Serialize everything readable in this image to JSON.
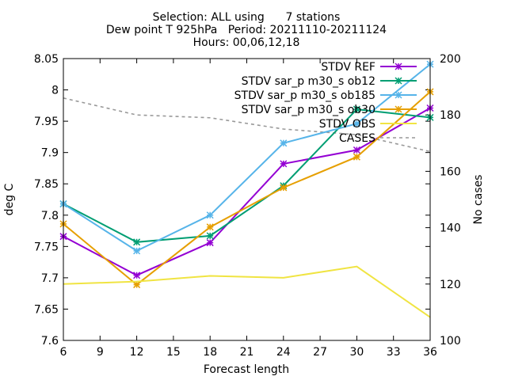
{
  "chart_data": {
    "type": "line",
    "title_lines": [
      "Selection: ALL using      7 stations",
      "Dew point T 925hPa   Period: 20211110-20211124",
      "Hours: 00,06,12,18"
    ],
    "xlabel": "Forecast length",
    "ylabel": "deg C",
    "y2label": "No cases",
    "x_ticks": [
      6,
      9,
      12,
      15,
      18,
      21,
      24,
      27,
      30,
      33,
      36
    ],
    "y_ticks": [
      7.6,
      7.65,
      7.7,
      7.75,
      7.8,
      7.85,
      7.9,
      7.95,
      8.0,
      8.05
    ],
    "y_tick_labels": [
      "7.6",
      "7.65",
      "7.7",
      "7.75",
      "7.8",
      "7.85",
      "7.9",
      "7.95",
      "8",
      "8.05"
    ],
    "y2_ticks": [
      100,
      120,
      140,
      160,
      180,
      200
    ],
    "xlim": [
      6,
      36
    ],
    "ylim": [
      7.6,
      8.05
    ],
    "y2lim": [
      100,
      200
    ],
    "grid": false,
    "legend_position": "top-right",
    "series": [
      {
        "name": "STDV REF",
        "color": "#9400d3",
        "marker": "x",
        "axis": "y",
        "x": [
          6,
          12,
          18,
          24,
          30,
          36
        ],
        "y": [
          7.766,
          7.704,
          7.756,
          7.882,
          7.904,
          7.971
        ]
      },
      {
        "name": "STDV sar_p m30_s ob12",
        "color": "#009e73",
        "marker": "x",
        "axis": "y",
        "x": [
          6,
          12,
          18,
          24,
          30,
          36
        ],
        "y": [
          7.818,
          7.757,
          7.767,
          7.847,
          7.969,
          7.956
        ]
      },
      {
        "name": "STDV sar_p m30_s ob185",
        "color": "#56b4e9",
        "marker": "x",
        "axis": "y",
        "x": [
          6,
          12,
          18,
          24,
          30,
          36
        ],
        "y": [
          7.818,
          7.743,
          7.8,
          7.915,
          7.946,
          8.041
        ]
      },
      {
        "name": "STDV sar_p m30_s ob30",
        "color": "#e69f00",
        "marker": "x",
        "axis": "y",
        "x": [
          6,
          12,
          18,
          24,
          30,
          36
        ],
        "y": [
          7.786,
          7.689,
          7.781,
          7.844,
          7.893,
          7.997
        ]
      },
      {
        "name": "STDV OBS",
        "color": "#f0e442",
        "marker": "none",
        "axis": "y",
        "x": [
          6,
          12,
          18,
          24,
          30,
          36
        ],
        "y": [
          7.69,
          7.694,
          7.703,
          7.7,
          7.718,
          7.637
        ]
      },
      {
        "name": "CASES",
        "color": "#999999",
        "marker": "none",
        "dashed": true,
        "axis": "y2",
        "x": [
          6,
          12,
          18,
          24,
          30,
          36
        ],
        "y": [
          186,
          180,
          179,
          175,
          173,
          167
        ]
      }
    ]
  }
}
